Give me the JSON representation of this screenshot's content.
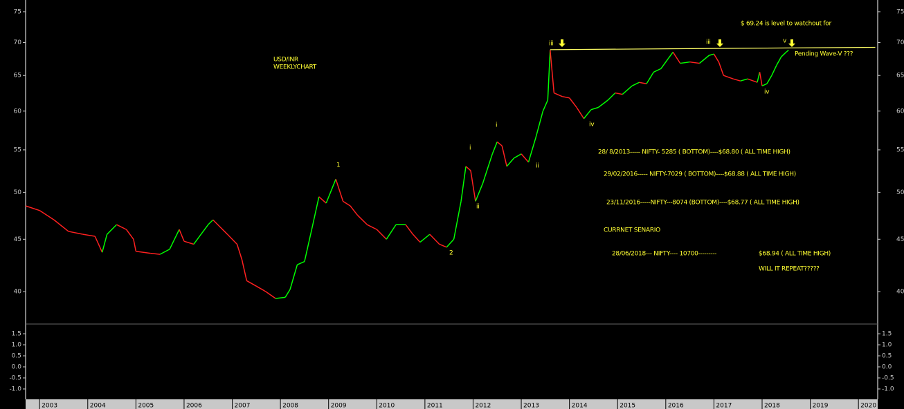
{
  "chart_data": {
    "type": "line",
    "log_scale": true,
    "up_color": "#00ff00",
    "down_color": "#ff2020",
    "xlim": [
      2002.71,
      2020.4
    ],
    "xticks": [
      2003,
      2004,
      2005,
      2006,
      2007,
      2008,
      2009,
      2010,
      2011,
      2012,
      2013,
      2014,
      2015,
      2016,
      2017,
      2018,
      2019,
      2020
    ],
    "ylim": [
      37.2,
      77
    ],
    "yticks": [
      40,
      45,
      50,
      55,
      60,
      65,
      70,
      75
    ],
    "x": [
      2002.71,
      2003.0,
      2003.3,
      2003.6,
      2003.9,
      2004.15,
      2004.3,
      2004.4,
      2004.6,
      2004.8,
      2004.95,
      2005.0,
      2005.3,
      2005.5,
      2005.7,
      2005.9,
      2006.0,
      2006.2,
      2006.5,
      2006.6,
      2006.9,
      2007.1,
      2007.2,
      2007.3,
      2007.5,
      2007.7,
      2007.9,
      2008.1,
      2008.2,
      2008.35,
      2008.5,
      2008.65,
      2008.8,
      2008.95,
      2009.15,
      2009.3,
      2009.45,
      2009.6,
      2009.8,
      2010.0,
      2010.2,
      2010.4,
      2010.6,
      2010.75,
      2010.9,
      2011.1,
      2011.3,
      2011.45,
      2011.6,
      2011.75,
      2011.85,
      2011.95,
      2012.05,
      2012.2,
      2012.4,
      2012.5,
      2012.6,
      2012.7,
      2012.85,
      2013.0,
      2013.15,
      2013.3,
      2013.45,
      2013.55,
      2013.6,
      2013.68,
      2013.85,
      2014.0,
      2014.15,
      2014.3,
      2014.45,
      2014.6,
      2014.8,
      2014.95,
      2015.1,
      2015.3,
      2015.45,
      2015.6,
      2015.75,
      2015.9,
      2016.05,
      2016.15,
      2016.3,
      2016.5,
      2016.7,
      2016.9,
      2017.0,
      2017.1,
      2017.2,
      2017.4,
      2017.55,
      2017.7,
      2017.9,
      2017.95,
      2018.0,
      2018.1,
      2018.2,
      2018.3,
      2018.4,
      2018.5,
      2018.55
    ],
    "series": [
      {
        "name": "USD/INR",
        "values": [
          48.5,
          48.0,
          47.0,
          45.8,
          45.5,
          45.3,
          43.7,
          45.5,
          46.5,
          46.0,
          45.0,
          43.8,
          43.6,
          43.5,
          44.0,
          46.0,
          44.8,
          44.5,
          46.5,
          47.0,
          45.5,
          44.5,
          43.0,
          41.0,
          40.5,
          40.0,
          39.4,
          39.5,
          40.2,
          42.5,
          42.8,
          46.0,
          49.5,
          48.8,
          51.5,
          49.0,
          48.5,
          47.5,
          46.5,
          46.0,
          45.0,
          46.5,
          46.5,
          45.5,
          44.7,
          45.5,
          44.5,
          44.2,
          45.0,
          49.0,
          53.0,
          52.5,
          49.0,
          51.0,
          54.5,
          56.0,
          55.5,
          53.0,
          54.0,
          54.5,
          53.5,
          56.5,
          60.0,
          61.5,
          68.8,
          62.5,
          62.0,
          61.8,
          60.5,
          59.0,
          60.2,
          60.5,
          61.5,
          62.5,
          62.3,
          63.5,
          64.0,
          63.8,
          65.5,
          66.0,
          67.5,
          68.5,
          66.8,
          67.0,
          66.8,
          68.0,
          68.2,
          67.0,
          65.0,
          64.5,
          64.2,
          64.5,
          64.0,
          65.5,
          63.5,
          63.8,
          65.0,
          66.5,
          67.8,
          68.5,
          68.8
        ]
      }
    ],
    "level_line": {
      "color": "#ffff66",
      "x": [
        2013.6,
        2020.35
      ],
      "values": [
        68.88,
        69.24
      ]
    },
    "lower_panel": {
      "ylim": [
        -1.47,
        1.94
      ],
      "yticks": [
        {
          "value": 1.5,
          "label": "1.5"
        },
        {
          "value": 1,
          "label": "1.0"
        },
        {
          "value": 0.5,
          "label": "0.5"
        },
        {
          "value": 0,
          "label": "0.0"
        },
        {
          "value": -0.5,
          "label": "-0.5"
        },
        {
          "value": -1,
          "label": "-1.0"
        }
      ]
    },
    "annotations": [
      "USD/INR",
      "WEEKLYCHART",
      "$ 69.24 is level to watchout for",
      "Pending Wave-V ???",
      "28/ 8/2013----- NIFTY- 5285 ( BOTTOM)----$68.80 ( ALL TIME HIGH)",
      "29/02/2016----- NIFTY-7029 ( BOTTOM)----$68.88 ( ALL TIME HIGH)",
      "23/11/2016-----NIFTY---8074 (BOTTOM)----$68.77  ( ALL TIME HIGH)",
      "CURRNET  SENARIO",
      "28/06/2018--- NIFTY---- 10700---------",
      "$68.94 ( ALL TIME HIGH)",
      "WILL IT REPEAT?????"
    ],
    "wave_labels": [
      "iii",
      "iii",
      "v",
      "i",
      "i",
      "ii",
      "ii",
      "iv",
      "iv",
      "1",
      "2"
    ]
  }
}
